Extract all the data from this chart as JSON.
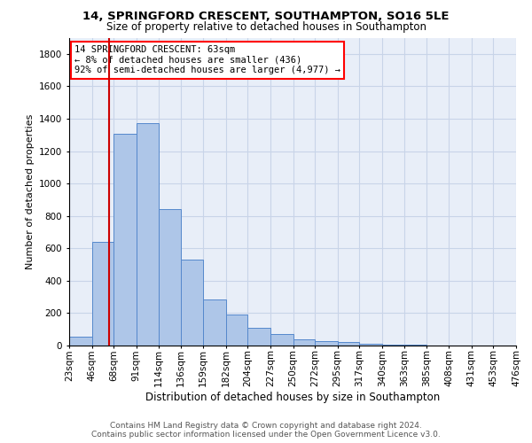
{
  "title1": "14, SPRINGFORD CRESCENT, SOUTHAMPTON, SO16 5LE",
  "title2": "Size of property relative to detached houses in Southampton",
  "xlabel": "Distribution of detached houses by size in Southampton",
  "ylabel": "Number of detached properties",
  "footer1": "Contains HM Land Registry data © Crown copyright and database right 2024.",
  "footer2": "Contains public sector information licensed under the Open Government Licence v3.0.",
  "annotation_line1": "14 SPRINGFORD CRESCENT: 63sqm",
  "annotation_line2": "← 8% of detached houses are smaller (436)",
  "annotation_line3": "92% of semi-detached houses are larger (4,977) →",
  "property_size": 63,
  "bar_color": "#aec6e8",
  "bar_edge_color": "#5588cc",
  "bg_color": "#e8eef8",
  "grid_color": "#c8d4e8",
  "red_line_color": "#cc0000",
  "bin_edges": [
    23,
    46,
    68,
    91,
    114,
    136,
    159,
    182,
    204,
    227,
    250,
    272,
    295,
    317,
    340,
    363,
    385,
    408,
    431,
    453,
    476
  ],
  "bar_heights": [
    55,
    640,
    1305,
    1370,
    840,
    530,
    285,
    190,
    110,
    70,
    40,
    25,
    20,
    10,
    5,
    3,
    2,
    1,
    0.5,
    0.2
  ],
  "ylim": [
    0,
    1900
  ],
  "yticks": [
    0,
    200,
    400,
    600,
    800,
    1000,
    1200,
    1400,
    1600,
    1800
  ],
  "title1_fontsize": 9.5,
  "title2_fontsize": 8.5,
  "ylabel_fontsize": 8,
  "xlabel_fontsize": 8.5,
  "tick_fontsize": 7.5,
  "footer_fontsize": 6.5,
  "annot_fontsize": 7.5
}
